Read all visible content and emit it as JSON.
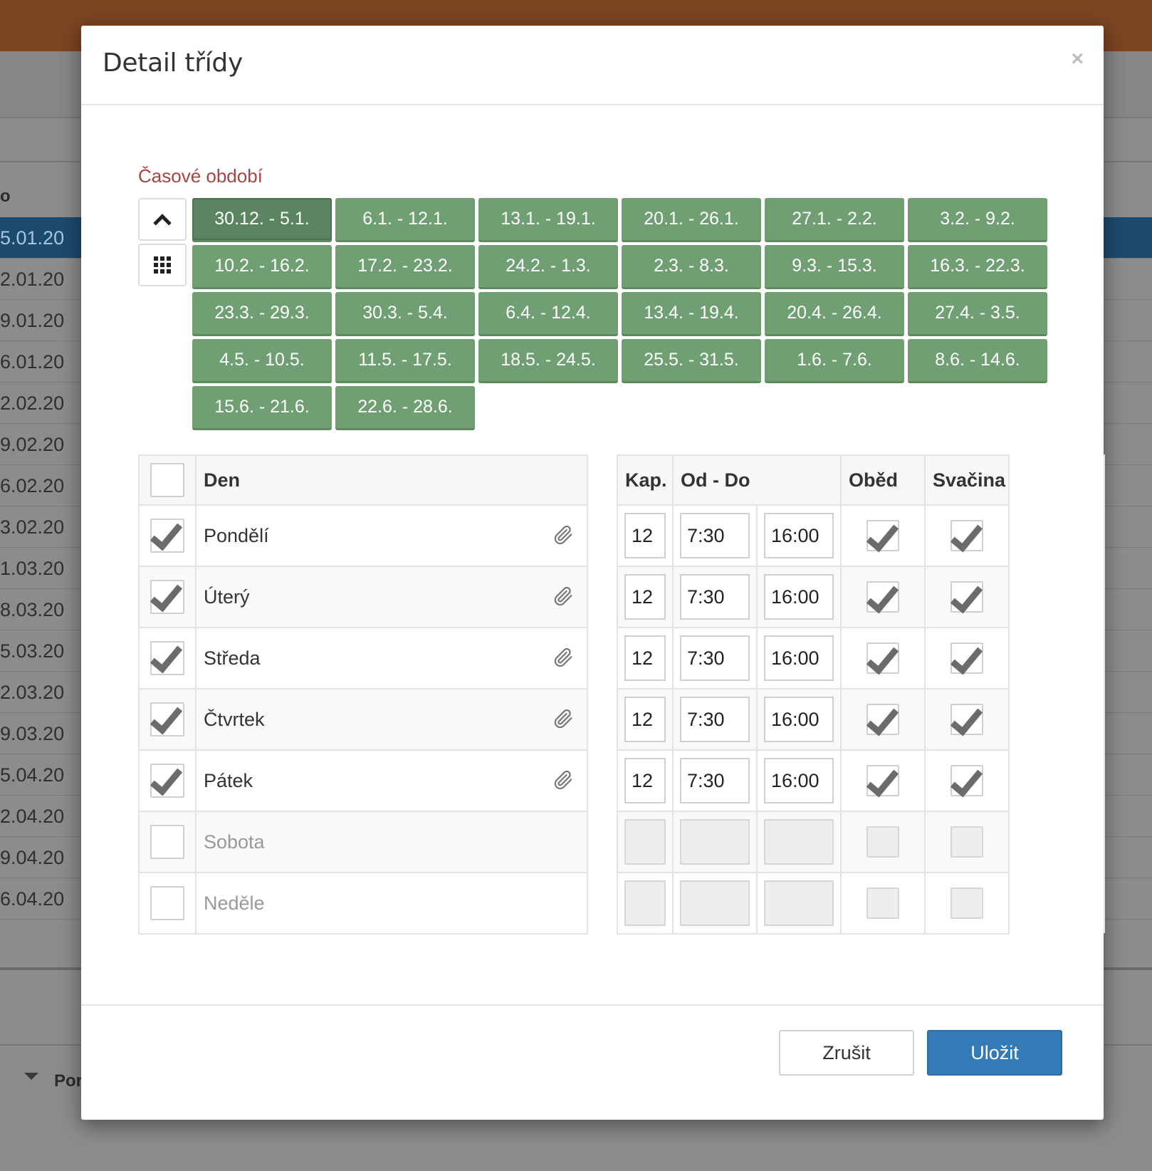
{
  "background": {
    "column_header": "o",
    "rows": [
      "5.01.20",
      "2.01.20",
      "9.01.20",
      "6.01.20",
      "2.02.20",
      "9.02.20",
      "6.02.20",
      "3.02.20",
      "1.03.20",
      "8.03.20",
      "5.03.20",
      "2.03.20",
      "9.03.20",
      "5.04.20",
      "2.04.20",
      "9.04.20",
      "6.04.20"
    ],
    "selected_row": 0,
    "bottom_label": "Por"
  },
  "modal": {
    "title": "Detail třídy",
    "close_label": "×",
    "period_label": "Časové období",
    "weeks": [
      "30.12. - 5.1.",
      "6.1. - 12.1.",
      "13.1. - 19.1.",
      "20.1. - 26.1.",
      "27.1. - 2.2.",
      "3.2. - 9.2.",
      "10.2. - 16.2.",
      "17.2. - 23.2.",
      "24.2. - 1.3.",
      "2.3. - 8.3.",
      "9.3. - 15.3.",
      "16.3. - 22.3.",
      "23.3. - 29.3.",
      "30.3. - 5.4.",
      "6.4. - 12.4.",
      "13.4. - 19.4.",
      "20.4. - 26.4.",
      "27.4. - 3.5.",
      "4.5. - 10.5.",
      "11.5. - 17.5.",
      "18.5. - 24.5.",
      "25.5. - 31.5.",
      "1.6. - 7.6.",
      "8.6. - 14.6.",
      "15.6. - 21.6.",
      "22.6. - 28.6."
    ],
    "active_week": 0,
    "days_header": "Den",
    "schedule_headers": {
      "kap": "Kap.",
      "od_do": "Od - Do",
      "obed": "Oběd",
      "svacina": "Svačina"
    },
    "days": [
      {
        "name": "Pondělí",
        "checked": true,
        "kap": "12",
        "od": "7:30",
        "do": "16:00",
        "obed": true,
        "svacina": true
      },
      {
        "name": "Úterý",
        "checked": true,
        "kap": "12",
        "od": "7:30",
        "do": "16:00",
        "obed": true,
        "svacina": true
      },
      {
        "name": "Středa",
        "checked": true,
        "kap": "12",
        "od": "7:30",
        "do": "16:00",
        "obed": true,
        "svacina": true
      },
      {
        "name": "Čtvrtek",
        "checked": true,
        "kap": "12",
        "od": "7:30",
        "do": "16:00",
        "obed": true,
        "svacina": true
      },
      {
        "name": "Pátek",
        "checked": true,
        "kap": "12",
        "od": "7:30",
        "do": "16:00",
        "obed": true,
        "svacina": true
      },
      {
        "name": "Sobota",
        "checked": false,
        "kap": "",
        "od": "",
        "do": "",
        "obed": false,
        "svacina": false
      },
      {
        "name": "Neděle",
        "checked": false,
        "kap": "",
        "od": "",
        "do": "",
        "obed": false,
        "svacina": false
      }
    ],
    "cancel_label": "Zrušit",
    "save_label": "Uložit"
  },
  "colors": {
    "week_button": "#6f9f72",
    "week_active": "#5a8560",
    "period_label": "#a94442",
    "primary": "#337ab7",
    "topbar": "#7b4522"
  },
  "icons": {
    "collapse": "chevron-up-icon",
    "grid": "grid-icon",
    "attachment": "paperclip-icon",
    "close": "close-icon"
  }
}
